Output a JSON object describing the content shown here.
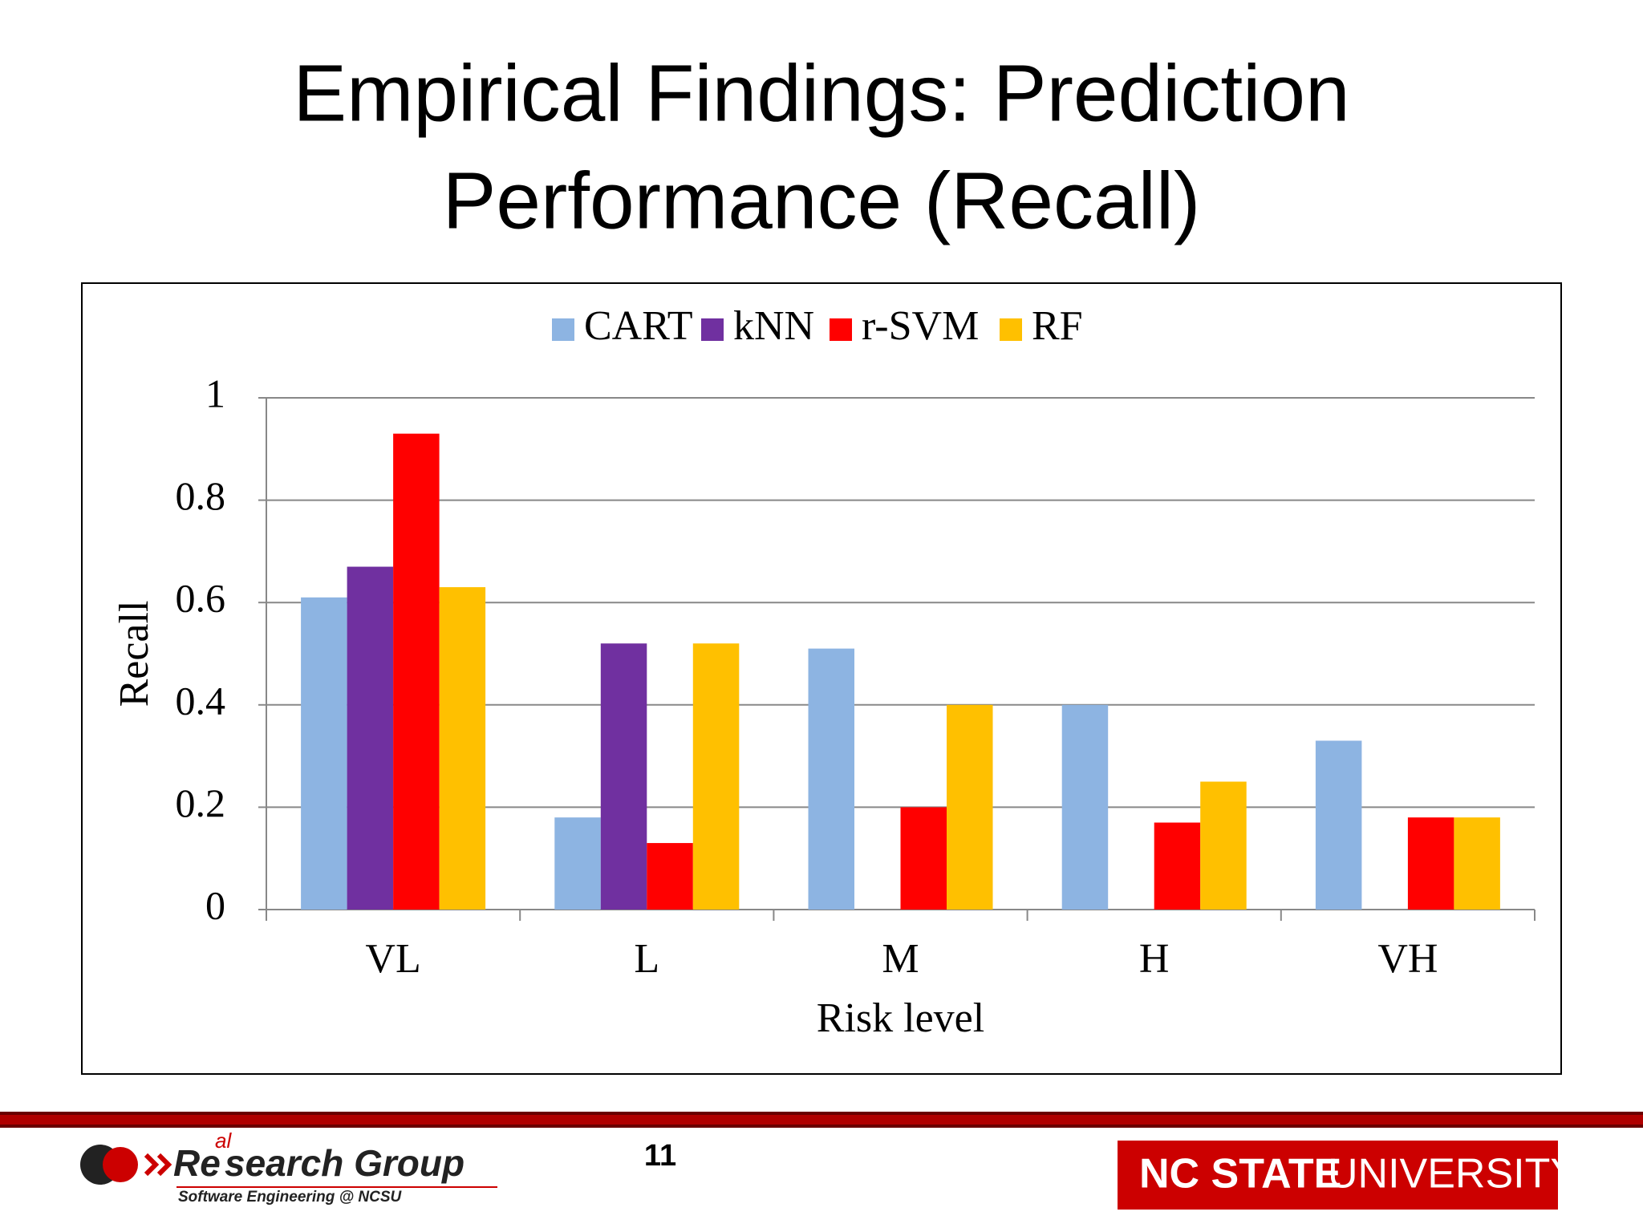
{
  "slide": {
    "title_line_1": "Empirical Findings: Prediction",
    "title_line_2": "Performance (Recall)",
    "page_number": "11",
    "logo": {
      "word_start": "Re",
      "insert": "al",
      "word_end": "search Group",
      "tagline": "Software Engineering @ NCSU"
    },
    "university_bold": "NC STATE",
    "university_light": "UNIVERSITY"
  },
  "chart_data": {
    "type": "bar",
    "x_label": "Risk level",
    "y_label": "Recall",
    "categories": [
      "VL",
      "L",
      "M",
      "H",
      "VH"
    ],
    "series": [
      {
        "name": "CART",
        "color": "#8db4e2",
        "values": [
          0.61,
          0.18,
          0.51,
          0.4,
          0.33
        ]
      },
      {
        "name": "kNN",
        "color": "#7030a0",
        "values": [
          0.67,
          0.52,
          0,
          0,
          0
        ]
      },
      {
        "name": "r-SVM",
        "color": "#ff0000",
        "values": [
          0.93,
          0.13,
          0.2,
          0.17,
          0.18
        ]
      },
      {
        "name": "RF",
        "color": "#ffc000",
        "values": [
          0.63,
          0.52,
          0.4,
          0.25,
          0.18
        ]
      }
    ],
    "ylim": [
      0,
      1
    ],
    "yticks": [
      0,
      0.2,
      0.4,
      0.6,
      0.8,
      1
    ],
    "grid": true,
    "legend": "top"
  }
}
